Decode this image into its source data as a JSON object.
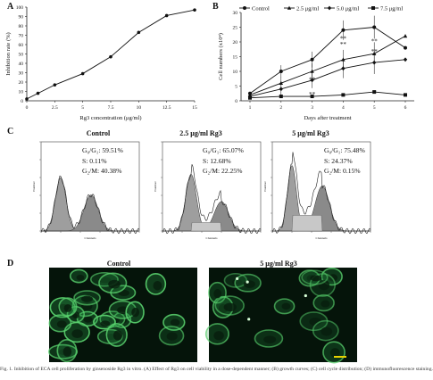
{
  "panels": {
    "A": {
      "label": "A",
      "chart_data": {
        "type": "line",
        "xlabel": "Rg3 concentration (μg/ml)",
        "ylabel": "Inhibition rate (%)",
        "x": [
          0,
          1,
          2.5,
          5,
          7.5,
          10,
          12.5,
          15
        ],
        "y": [
          2,
          8,
          17,
          29,
          47,
          73,
          91,
          97
        ],
        "xticks": [
          "0",
          "2.5",
          "5",
          "7.5",
          "10",
          "12.5",
          "15"
        ],
        "yticks": [
          "0",
          "10",
          "20",
          "30",
          "40",
          "50",
          "60",
          "70",
          "80",
          "90",
          "100"
        ],
        "xlim": [
          0,
          15
        ],
        "ylim": [
          0,
          100
        ]
      }
    },
    "B": {
      "label": "B",
      "chart_data": {
        "type": "line",
        "xlabel": "Days after treatment",
        "ylabel": "Cell numbers (x10⁴)",
        "categories": [
          "1",
          "2",
          "3",
          "4",
          "5",
          "6"
        ],
        "yticks": [
          "0",
          "5",
          "10",
          "15",
          "20",
          "25",
          "30"
        ],
        "ylim": [
          0,
          30
        ],
        "legend_position": "top",
        "series": [
          {
            "name": "Control",
            "marker": "circle",
            "values": [
              2.5,
              10,
              14,
              24,
              25,
              18
            ]
          },
          {
            "name": "2.5 μg/ml",
            "marker": "triangle",
            "values": [
              2,
              6,
              10,
              14,
              16,
              22
            ]
          },
          {
            "name": "5.0 μg/ml",
            "marker": "diamond",
            "values": [
              1.5,
              4,
              7,
              11,
              13,
              14
            ]
          },
          {
            "name": "7.5 μg/ml",
            "marker": "square",
            "values": [
              1,
              1.5,
              1.5,
              2,
              3,
              2
            ]
          }
        ],
        "annotations": [
          "**",
          "**",
          "**",
          "**",
          "**",
          "**"
        ]
      }
    },
    "C": {
      "label": "C",
      "histograms": [
        {
          "title": "Control",
          "stats": [
            "G₀/G₁: 59.51%",
            "S: 0.11%",
            "G₂/M: 40.38%"
          ]
        },
        {
          "title": "2.5 μg/ml Rg3",
          "stats": [
            "G₀/G₁: 65.07%",
            "S: 12.68%",
            "G₂/M: 22.25%"
          ]
        },
        {
          "title": "5 μg/ml Rg3",
          "stats": [
            "G₀/G₁: 75.48%",
            "S: 24.37%",
            "G₂/M: 0.15%"
          ]
        }
      ],
      "axis_small_y": "Number",
      "axis_small_x": "Channels"
    },
    "D": {
      "label": "D",
      "images": [
        {
          "title": "Control"
        },
        {
          "title": "5 μg/ml Rg3"
        }
      ]
    }
  },
  "caption": "Fig. 1. Inhibition of ECA cell proliferation by ginsenoside Rg3 in vitro. (A) Effect of Rg3 on cell viability in a dose-dependent manner; (B) growth curves; (C) cell cycle distribution; (D) immunofluorescence staining."
}
